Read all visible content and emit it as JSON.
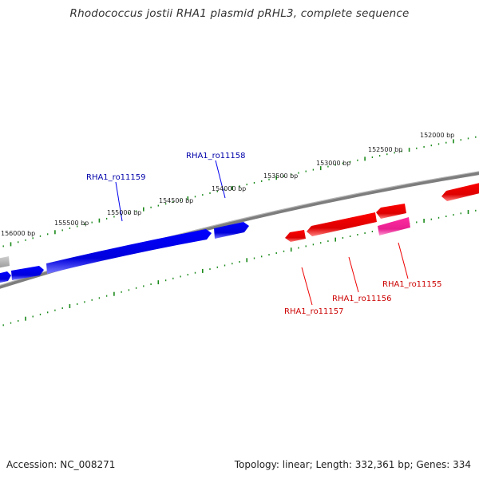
{
  "title": "Rhodococcus jostii RHA1 plasmid pRHL3, complete sequence",
  "footer": {
    "accession": "Accession: NC_008271",
    "topology": "Topology: linear; Length: 332,361 bp; Genes: 334"
  },
  "colors": {
    "forward_gene": "#0000ee",
    "reverse_gene": "#ee0000",
    "highlight_gene": "#ee1f99",
    "grey_gene": "#b0b0b0",
    "backbone": "#7a7a7a",
    "ruler_tick": "#1a8a1a"
  },
  "ruler_labels": [
    "156000 bp",
    "155500 bp",
    "155000 bp",
    "154500 bp",
    "154000 bp",
    "153500 bp",
    "153000 bp",
    "152500 bp",
    "152000 bp"
  ],
  "gene_labels": {
    "forward": [
      "RHA1_ro11159",
      "RHA1_ro11158"
    ],
    "reverse": [
      "RHA1_ro11157",
      "RHA1_ro11156",
      "RHA1_ro11155"
    ]
  }
}
